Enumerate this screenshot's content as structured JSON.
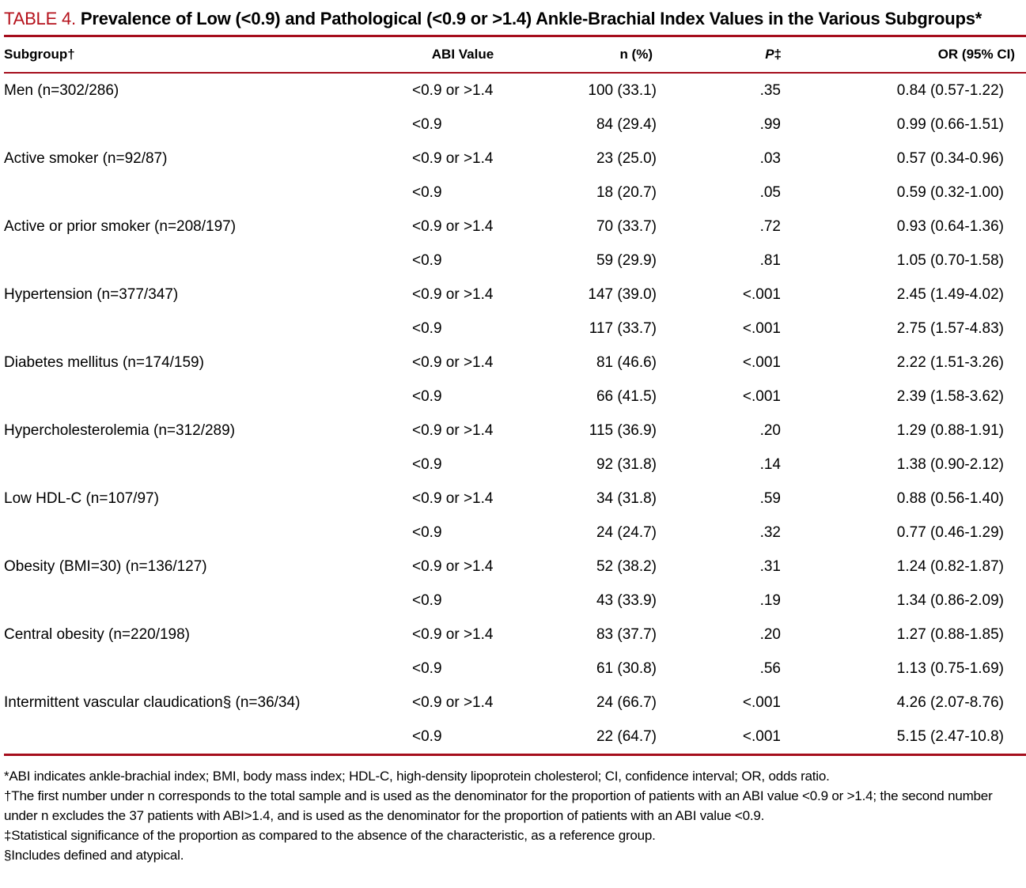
{
  "title": {
    "label": "TABLE 4.",
    "text": "Prevalence of Low (<0.9) and Pathological (<0.9 or >1.4) Ankle-Brachial Index Values in the Various Subgroups*"
  },
  "colors": {
    "title_red": "#b5121c",
    "rule_red": "#a50d1c",
    "text": "#000000",
    "background": "#ffffff"
  },
  "table": {
    "headers": {
      "subgroup": "Subgroup†",
      "abi": "ABI Value",
      "n": "n (%)",
      "p_italic": "P",
      "p_mark": "‡",
      "or": "OR (95% CI)"
    },
    "rows": [
      {
        "subgroup": "Men (n=302/286)",
        "abi": "<0.9 or >1.4",
        "n": "100 (33.1)",
        "p": ".35",
        "or": "0.84 (0.57-1.22)"
      },
      {
        "subgroup": "",
        "abi": "<0.9",
        "n": "84 (29.4)",
        "p": ".99",
        "or": "0.99 (0.66-1.51)"
      },
      {
        "subgroup": "Active smoker (n=92/87)",
        "abi": "<0.9 or >1.4",
        "n": "23 (25.0)",
        "p": ".03",
        "or": "0.57 (0.34-0.96)"
      },
      {
        "subgroup": "",
        "abi": "<0.9",
        "n": "18 (20.7)",
        "p": ".05",
        "or": "0.59 (0.32-1.00)"
      },
      {
        "subgroup": "Active or prior smoker (n=208/197)",
        "abi": "<0.9 or >1.4",
        "n": "70 (33.7)",
        "p": ".72",
        "or": "0.93 (0.64-1.36)"
      },
      {
        "subgroup": "",
        "abi": "<0.9",
        "n": "59 (29.9)",
        "p": ".81",
        "or": "1.05 (0.70-1.58)"
      },
      {
        "subgroup": "Hypertension (n=377/347)",
        "abi": "<0.9 or >1.4",
        "n": "147 (39.0)",
        "p": "<.001",
        "or": "2.45 (1.49-4.02)"
      },
      {
        "subgroup": "",
        "abi": "<0.9",
        "n": "117 (33.7)",
        "p": "<.001",
        "or": "2.75 (1.57-4.83)"
      },
      {
        "subgroup": "Diabetes mellitus (n=174/159)",
        "abi": "<0.9 or >1.4",
        "n": "81 (46.6)",
        "p": "<.001",
        "or": "2.22 (1.51-3.26)"
      },
      {
        "subgroup": "",
        "abi": "<0.9",
        "n": "66 (41.5)",
        "p": "<.001",
        "or": "2.39 (1.58-3.62)"
      },
      {
        "subgroup": "Hypercholesterolemia (n=312/289)",
        "abi": "<0.9 or >1.4",
        "n": "115 (36.9)",
        "p": ".20",
        "or": "1.29 (0.88-1.91)"
      },
      {
        "subgroup": "",
        "abi": "<0.9",
        "n": "92 (31.8)",
        "p": ".14",
        "or": "1.38 (0.90-2.12)"
      },
      {
        "subgroup": "Low HDL-C (n=107/97)",
        "abi": "<0.9 or >1.4",
        "n": "34 (31.8)",
        "p": ".59",
        "or": "0.88 (0.56-1.40)"
      },
      {
        "subgroup": "",
        "abi": "<0.9",
        "n": "24 (24.7)",
        "p": ".32",
        "or": "0.77 (0.46-1.29)"
      },
      {
        "subgroup": "Obesity (BMI=30) (n=136/127)",
        "abi": "<0.9 or >1.4",
        "n": "52 (38.2)",
        "p": ".31",
        "or": "1.24 (0.82-1.87)"
      },
      {
        "subgroup": "",
        "abi": "<0.9",
        "n": "43 (33.9)",
        "p": ".19",
        "or": "1.34 (0.86-2.09)"
      },
      {
        "subgroup": "Central obesity (n=220/198)",
        "abi": "<0.9 or >1.4",
        "n": "83 (37.7)",
        "p": ".20",
        "or": "1.27 (0.88-1.85)"
      },
      {
        "subgroup": "",
        "abi": "<0.9",
        "n": "61 (30.8)",
        "p": ".56",
        "or": "1.13 (0.75-1.69)"
      },
      {
        "subgroup": "Intermittent vascular claudication§ (n=36/34)",
        "abi": "<0.9 or >1.4",
        "n": "24 (66.7)",
        "p": "<.001",
        "or": "4.26 (2.07-8.76)"
      },
      {
        "subgroup": "",
        "abi": "<0.9",
        "n": "22 (64.7)",
        "p": "<.001",
        "or": "5.15 (2.47-10.8)"
      }
    ]
  },
  "footnotes": [
    "*ABI indicates ankle-brachial index; BMI, body mass index; HDL-C, high-density lipoprotein cholesterol; CI, confidence interval; OR, odds ratio.",
    "†The first number under n corresponds to the total sample and is used as the denominator for the proportion of patients with an ABI value <0.9 or >1.4; the second number under n excludes the 37 patients with ABI>1.4, and is used as the denominator for the proportion of patients with an ABI value <0.9.",
    "‡Statistical significance of the proportion as compared to the absence of the characteristic, as a reference group.",
    "§Includes defined and atypical."
  ]
}
